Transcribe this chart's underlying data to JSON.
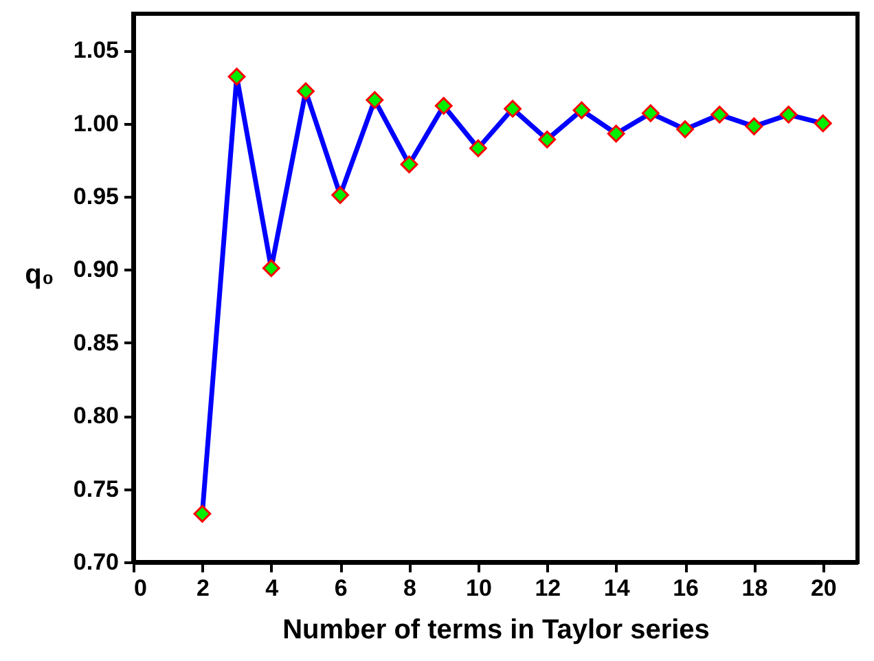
{
  "chart_data": {
    "type": "line",
    "xlabel": "Number of terms in Taylor series",
    "ylabel": "q₀",
    "x": [
      2,
      3,
      4,
      5,
      6,
      7,
      8,
      9,
      10,
      11,
      12,
      13,
      14,
      15,
      16,
      17,
      18,
      19,
      20
    ],
    "series": [
      {
        "color": "#0000ff",
        "values": [
          0.733,
          1.032,
          0.901,
          1.022,
          0.951,
          1.016,
          0.972,
          1.012,
          0.983,
          1.01,
          0.989,
          1.009,
          0.993,
          1.007,
          0.996,
          1.006,
          0.998,
          1.006,
          1.0
        ]
      }
    ],
    "xlim": [
      0,
      21
    ],
    "xticks": [
      0,
      2,
      4,
      6,
      8,
      10,
      12,
      14,
      16,
      18,
      20
    ],
    "ylim": [
      0.7,
      1.075
    ],
    "yticks": [
      {
        "value": 0.7,
        "label": "0.70"
      },
      {
        "value": 0.75,
        "label": "0.75"
      },
      {
        "value": 0.8,
        "label": "0.80"
      },
      {
        "value": 0.85,
        "label": "0.85"
      },
      {
        "value": 0.9,
        "label": "0.90"
      },
      {
        "value": 0.95,
        "label": "0.95"
      },
      {
        "value": 1.0,
        "label": "1.00"
      },
      {
        "value": 1.05,
        "label": "1.05"
      }
    ],
    "marker": "diamond",
    "grid": false
  }
}
